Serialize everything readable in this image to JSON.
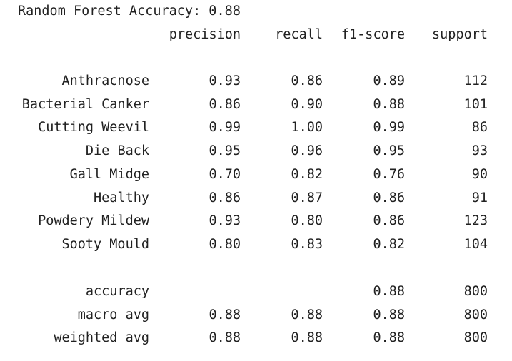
{
  "title": "Random Forest Accuracy: 0.88",
  "headers": {
    "precision": "precision",
    "recall": "recall",
    "f1": "f1-score",
    "support": "support"
  },
  "classes": [
    {
      "label": "Anthracnose",
      "precision": "0.93",
      "recall": "0.86",
      "f1": "0.89",
      "support": "112"
    },
    {
      "label": "Bacterial Canker",
      "precision": "0.86",
      "recall": "0.90",
      "f1": "0.88",
      "support": "101"
    },
    {
      "label": "Cutting Weevil",
      "precision": "0.99",
      "recall": "1.00",
      "f1": "0.99",
      "support": "86"
    },
    {
      "label": "Die Back",
      "precision": "0.95",
      "recall": "0.96",
      "f1": "0.95",
      "support": "93"
    },
    {
      "label": "Gall Midge",
      "precision": "0.70",
      "recall": "0.82",
      "f1": "0.76",
      "support": "90"
    },
    {
      "label": "Healthy",
      "precision": "0.86",
      "recall": "0.87",
      "f1": "0.86",
      "support": "91"
    },
    {
      "label": "Powdery Mildew",
      "precision": "0.93",
      "recall": "0.80",
      "f1": "0.86",
      "support": "123"
    },
    {
      "label": "Sooty Mould",
      "precision": "0.80",
      "recall": "0.83",
      "f1": "0.82",
      "support": "104"
    }
  ],
  "summary": [
    {
      "label": "accuracy",
      "precision": "",
      "recall": "",
      "f1": "0.88",
      "support": "800"
    },
    {
      "label": "macro avg",
      "precision": "0.88",
      "recall": "0.88",
      "f1": "0.88",
      "support": "800"
    },
    {
      "label": "weighted avg",
      "precision": "0.88",
      "recall": "0.88",
      "f1": "0.88",
      "support": "800"
    }
  ]
}
